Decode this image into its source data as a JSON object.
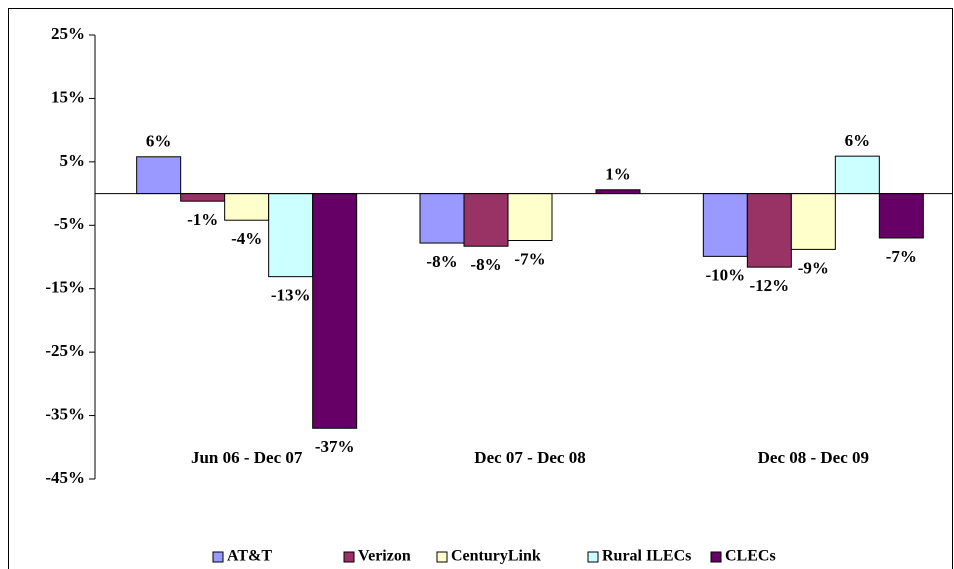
{
  "chart_data": {
    "type": "bar",
    "categories": [
      "Jun 06 - Dec 07",
      "Dec 07 - Dec 08",
      "Dec 08 - Dec 09"
    ],
    "series": [
      {
        "name": "AT&T",
        "color": "#9999ff",
        "values": [
          5.8,
          -7.8,
          -9.9
        ],
        "value_labels": [
          "6%",
          "-8%",
          "-10%"
        ]
      },
      {
        "name": "Verizon",
        "color": "#993366",
        "values": [
          -1.2,
          -8.3,
          -11.6
        ],
        "value_labels": [
          "-1%",
          "-8%",
          "-12%"
        ]
      },
      {
        "name": "CenturyLink",
        "color": "#ffffcc",
        "values": [
          -4.2,
          -7.4,
          -8.8
        ],
        "value_labels": [
          "-4%",
          "-7%",
          "-9%"
        ]
      },
      {
        "name": "Rural ILECs",
        "color": "#ccffff",
        "values": [
          -13.1,
          null,
          5.9
        ],
        "value_labels": [
          "-13%",
          null,
          "6%"
        ]
      },
      {
        "name": "CLECs",
        "color": "#660066",
        "values": [
          -37,
          0.6,
          -7.0
        ],
        "value_labels": [
          "-37%",
          "1%",
          "-7%"
        ]
      }
    ],
    "ylim": [
      -45,
      25
    ],
    "yticks": [
      {
        "value": -45,
        "label": "-45%"
      },
      {
        "value": -35,
        "label": "-35%"
      },
      {
        "value": -25,
        "label": "-25%"
      },
      {
        "value": -15,
        "label": "-15%"
      },
      {
        "value": -5,
        "label": "-5%"
      },
      {
        "value": 5,
        "label": "5%"
      },
      {
        "value": 15,
        "label": "15%"
      },
      {
        "value": 25,
        "label": "25%"
      }
    ],
    "legend": "bottom"
  }
}
